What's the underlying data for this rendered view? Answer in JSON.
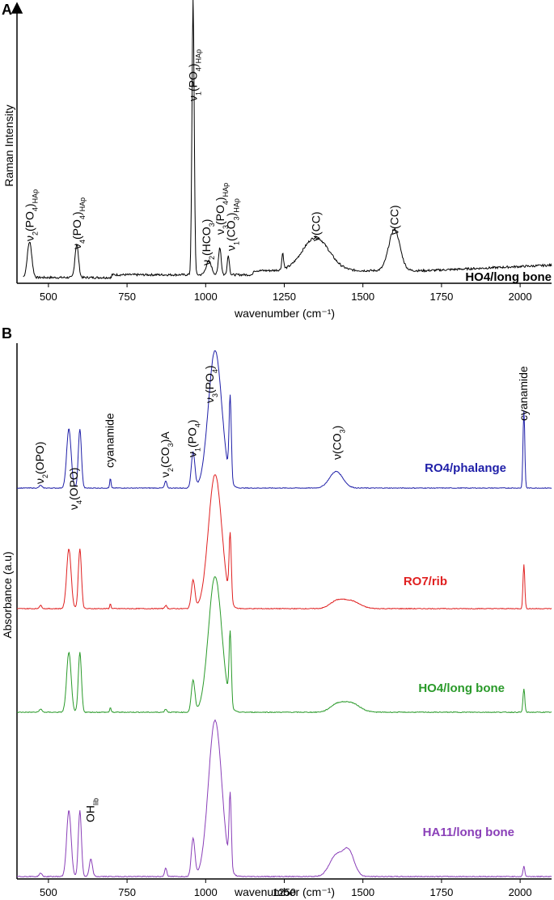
{
  "panel_a": {
    "label": "A",
    "ylabel": "Raman Intensity",
    "xlabel": "wavenumber (cm⁻¹)",
    "sample_label": "HO4/long bone",
    "annotations": [
      {
        "wn": 440,
        "main": "ν",
        "sub1": "2",
        "mid": "(PO",
        "sub2": "4",
        "end": ")",
        "sub3": "HAp"
      },
      {
        "wn": 590,
        "main": "ν",
        "sub1": "4",
        "mid": "(PO",
        "sub2": "4",
        "end": ")",
        "sub3": "HAp"
      },
      {
        "wn": 960,
        "main": "ν",
        "sub1": "1",
        "mid": "(PO",
        "sub2": "4",
        "end": ")",
        "sub3": "HAp"
      },
      {
        "wn": 1010,
        "main": "ν",
        "sub1": "2",
        "mid": "(HCO",
        "sub2": "3",
        "end": ")",
        "sub3": ""
      },
      {
        "wn": 1045,
        "main": "ν",
        "sub1": "3",
        "mid": "(PO",
        "sub2": "4",
        "end": ")",
        "sub3": "HAp"
      },
      {
        "wn": 1072,
        "main": "ν",
        "sub1": "1",
        "mid": "(CO",
        "sub2": "3",
        "end": ")",
        "sub3": "HAp"
      },
      {
        "wn": 1350,
        "main": "ν(CC)",
        "sub1": "",
        "mid": "",
        "sub2": "",
        "end": "",
        "sub3": ""
      },
      {
        "wn": 1600,
        "main": "ν(CC)",
        "sub1": "",
        "mid": "",
        "sub2": "",
        "end": "",
        "sub3": ""
      }
    ]
  },
  "panel_b": {
    "label": "B",
    "ylabel": "Absorbance (a.u)",
    "xlabel": "wavenumber (cm⁻¹)",
    "series_labels": [
      {
        "name": "RO4/phalange",
        "color": "#1f1fa8"
      },
      {
        "name": "RO7/rib",
        "color": "#e02020"
      },
      {
        "name": "HO4/long bone",
        "color": "#2a9a2a"
      },
      {
        "name": "HA11/long bone",
        "color": "#8a3fb8"
      }
    ],
    "annotations": [
      {
        "id": "v2-opo",
        "main": "ν",
        "sub1": "2",
        "mid": "(OPO)",
        "sub2": "",
        "end": ""
      },
      {
        "id": "v4-opo",
        "main": "ν",
        "sub1": "4",
        "mid": "(OPO)",
        "sub2": "",
        "end": ""
      },
      {
        "id": "cyanamide-1",
        "main": "cyanamide",
        "sub1": "",
        "mid": "",
        "sub2": "",
        "end": ""
      },
      {
        "id": "v2-co3",
        "main": "ν",
        "sub1": "2",
        "mid": "(CO",
        "sub2": "3",
        "end": ")A"
      },
      {
        "id": "v1-po4",
        "main": "ν",
        "sub1": "1",
        "mid": "(PO",
        "sub2": "4",
        "end": ")"
      },
      {
        "id": "v3-po4",
        "main": "ν",
        "sub1": "3",
        "mid": "(PO",
        "sub2": "4",
        "end": ")"
      },
      {
        "id": "v-co3",
        "main": "ν(CO",
        "sub1": "",
        "mid": "",
        "sub2": "3",
        "end": ")"
      },
      {
        "id": "cyanamide-2",
        "main": "cyanamide",
        "sub1": "",
        "mid": "",
        "sub2": "",
        "end": ""
      },
      {
        "id": "oh-lib",
        "main": "OH",
        "sub1": "lib",
        "mid": "",
        "sub2": "",
        "end": ""
      }
    ]
  },
  "chart_data": [
    {
      "type": "line",
      "title": "",
      "xlabel": "wavenumber (cm⁻¹)",
      "ylabel": "Raman Intensity",
      "xlim": [
        400,
        2100
      ],
      "xticks": [
        500,
        750,
        1000,
        1250,
        1500,
        1750,
        2000
      ],
      "series": [
        {
          "name": "HO4/long bone",
          "color": "#000000",
          "peaks": [
            [
              440,
              0.13
            ],
            [
              590,
              0.12
            ],
            [
              960,
              1.0
            ],
            [
              1010,
              0.05
            ],
            [
              1045,
              0.1
            ],
            [
              1072,
              0.07
            ],
            [
              1245,
              0.06
            ],
            [
              1350,
              0.12
            ],
            [
              1600,
              0.15
            ]
          ]
        }
      ]
    },
    {
      "type": "line",
      "title": "",
      "xlabel": "wavenumber (cm⁻¹)",
      "ylabel": "Absorbance (a.u)",
      "xlim": [
        400,
        2100
      ],
      "xticks": [
        500,
        750,
        1000,
        1250,
        1500,
        1750,
        2000
      ],
      "series": [
        {
          "name": "RO4/phalange",
          "color": "#1f1fa8",
          "peaks": [
            [
              475,
              0.02
            ],
            [
              565,
              0.43
            ],
            [
              600,
              0.43
            ],
            [
              697,
              0.07
            ],
            [
              873,
              0.05
            ],
            [
              960,
              0.26
            ],
            [
              1030,
              1.0
            ],
            [
              1078,
              0.6
            ],
            [
              1415,
              0.12
            ],
            [
              2012,
              0.56
            ]
          ]
        },
        {
          "name": "RO7/rib",
          "color": "#e02020",
          "peaks": [
            [
              475,
              0.02
            ],
            [
              565,
              0.38
            ],
            [
              600,
              0.38
            ],
            [
              697,
              0.03
            ],
            [
              873,
              0.02
            ],
            [
              960,
              0.18
            ],
            [
              1030,
              0.85
            ],
            [
              1078,
              0.42
            ],
            [
              1415,
              0.04
            ],
            [
              1460,
              0.05
            ],
            [
              2012,
              0.28
            ]
          ]
        },
        {
          "name": "HO4/long bone",
          "color": "#2a9a2a",
          "peaks": [
            [
              475,
              0.02
            ],
            [
              565,
              0.38
            ],
            [
              600,
              0.38
            ],
            [
              697,
              0.03
            ],
            [
              873,
              0.02
            ],
            [
              960,
              0.2
            ],
            [
              1030,
              0.86
            ],
            [
              1078,
              0.45
            ],
            [
              1415,
              0.04
            ],
            [
              1460,
              0.06
            ],
            [
              2012,
              0.15
            ]
          ]
        },
        {
          "name": "HA11/long bone",
          "color": "#8a3fb8",
          "peaks": [
            [
              475,
              0.02
            ],
            [
              565,
              0.38
            ],
            [
              600,
              0.38
            ],
            [
              635,
              0.1
            ],
            [
              873,
              0.05
            ],
            [
              960,
              0.22
            ],
            [
              1030,
              0.9
            ],
            [
              1078,
              0.42
            ],
            [
              1415,
              0.12
            ],
            [
              1455,
              0.14
            ],
            [
              2012,
              0.06
            ]
          ]
        }
      ]
    }
  ]
}
